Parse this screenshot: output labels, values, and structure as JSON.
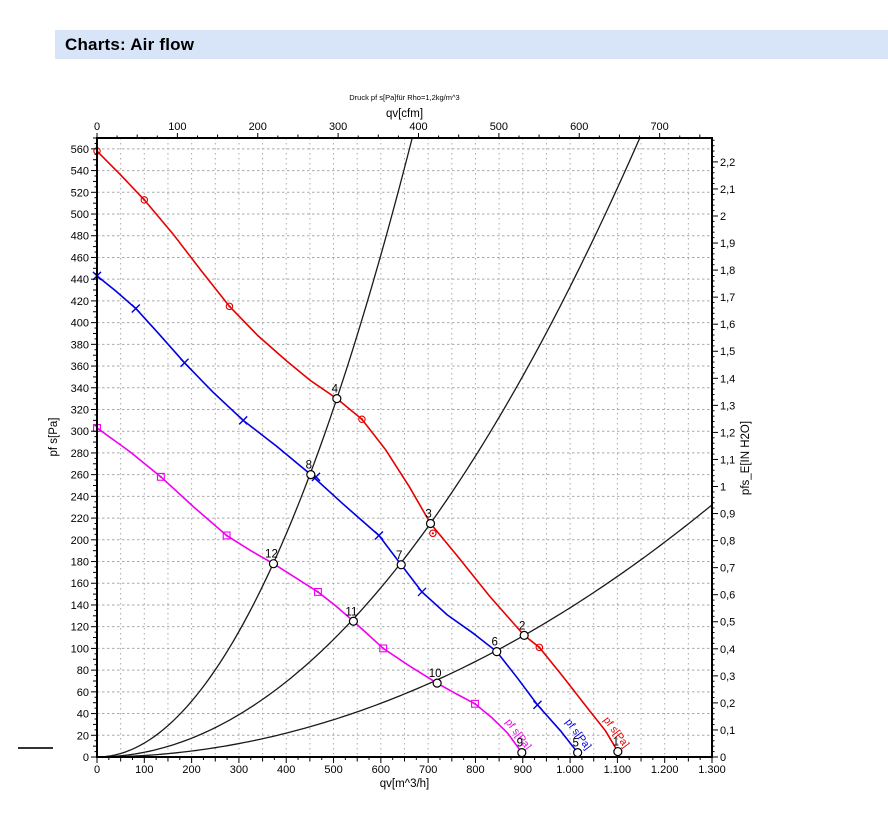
{
  "header": {
    "title": "Charts: Air flow",
    "bg_color": "#d8e4f8"
  },
  "decorations": {
    "dash_color": "#333333"
  },
  "chart_data": {
    "type": "line",
    "title": "Druck pf s[Pa]für Rho=1,2kg/m^3",
    "colors": {
      "grid": "#a9a9a9",
      "axis": "#000000",
      "black_curve": "#1a1a1a",
      "point_fill": "#ffffff"
    },
    "axes": {
      "x_bottom": {
        "label": "qv[m^3/h]",
        "min": 0,
        "max": 1300,
        "minor_step": 25,
        "mid_step": 50,
        "values": [
          0,
          100,
          200,
          300,
          400,
          500,
          600,
          700,
          800,
          900,
          1000,
          1100,
          1200,
          1300
        ],
        "labels": [
          "0",
          "100",
          "200",
          "300",
          "400",
          "500",
          "600",
          "700",
          "800",
          "900",
          "1.000",
          "1.100",
          "1.200",
          "1.300"
        ]
      },
      "x_top": {
        "label": "qv[cfm]",
        "m3h_per_unit": 1.699,
        "minor_step": 25,
        "values": [
          0,
          100,
          200,
          300,
          400,
          500,
          600,
          700
        ],
        "labels": [
          "0",
          "100",
          "200",
          "300",
          "400",
          "500",
          "600",
          "700"
        ]
      },
      "y_left": {
        "label": "pf s[Pa]",
        "min": 0,
        "max": 560,
        "plot_max": 570,
        "minor_step": 5,
        "mid_step": 10,
        "values": [
          0,
          20,
          40,
          60,
          80,
          100,
          120,
          140,
          160,
          180,
          200,
          220,
          240,
          260,
          280,
          300,
          320,
          340,
          360,
          380,
          400,
          420,
          440,
          460,
          480,
          500,
          520,
          540,
          560
        ],
        "labels": [
          "0",
          "20",
          "40",
          "60",
          "80",
          "100",
          "120",
          "140",
          "160",
          "180",
          "200",
          "220",
          "240",
          "260",
          "280",
          "300",
          "320",
          "340",
          "360",
          "380",
          "400",
          "420",
          "440",
          "460",
          "480",
          "500",
          "520",
          "540",
          "560"
        ]
      },
      "y_right": {
        "label": "pfs_E[IN H2O]",
        "pa_per_unit": 249.089,
        "minor_step": 0.02,
        "values": [
          0,
          0.1,
          0.2,
          0.3,
          0.4,
          0.5,
          0.6,
          0.7,
          0.8,
          0.9,
          1,
          1.1,
          1.2,
          1.3,
          1.4,
          1.5,
          1.6,
          1.7,
          1.8,
          1.9,
          2,
          2.1,
          2.2
        ],
        "labels": [
          "0",
          "0,1",
          "0,2",
          "0,3",
          "0,4",
          "0,5",
          "0,6",
          "0,7",
          "0,8",
          "0,9",
          "1",
          "1,1",
          "1,2",
          "1,3",
          "1,4",
          "1,5",
          "1,6",
          "1,7",
          "1,8",
          "1,9",
          "2",
          "2,1",
          "2,2"
        ]
      }
    },
    "series": [
      {
        "id": "fan-curve-high",
        "label": "pf s[Pa]",
        "color": "#e60000",
        "marker": "circle-dot",
        "points": [
          [
            0,
            558
          ],
          [
            50,
            536
          ],
          [
            100,
            513
          ],
          [
            160,
            482
          ],
          [
            220,
            448
          ],
          [
            280,
            415
          ],
          [
            340,
            388
          ],
          [
            400,
            365
          ],
          [
            450,
            347
          ],
          [
            507,
            330
          ],
          [
            560,
            311
          ],
          [
            610,
            283
          ],
          [
            660,
            249
          ],
          [
            705,
            215
          ],
          [
            760,
            186
          ],
          [
            830,
            148
          ],
          [
            903,
            112
          ],
          [
            935,
            101
          ],
          [
            985,
            74
          ],
          [
            1035,
            46
          ],
          [
            1075,
            24
          ],
          [
            1101,
            5
          ]
        ],
        "marker_points": [
          [
            0,
            558
          ],
          [
            100,
            513
          ],
          [
            280,
            415
          ],
          [
            560,
            311
          ],
          [
            710,
            206
          ],
          [
            935,
            101
          ]
        ],
        "label_pos": {
          "x": 603,
          "y": 720,
          "angle": 53
        }
      },
      {
        "id": "fan-curve-mid",
        "label": "pf s[Pa]",
        "color": "#0000e0",
        "marker": "x",
        "points": [
          [
            0,
            443
          ],
          [
            40,
            429
          ],
          [
            82,
            413
          ],
          [
            130,
            390
          ],
          [
            185,
            363
          ],
          [
            245,
            336
          ],
          [
            309,
            310
          ],
          [
            380,
            286
          ],
          [
            452,
            260
          ],
          [
            520,
            233
          ],
          [
            596,
            204
          ],
          [
            643,
            177
          ],
          [
            687,
            152
          ],
          [
            740,
            131
          ],
          [
            795,
            114
          ],
          [
            845,
            97
          ],
          [
            890,
            72
          ],
          [
            931,
            48
          ],
          [
            980,
            24
          ],
          [
            1016,
            4
          ]
        ],
        "marker_points": [
          [
            0,
            443
          ],
          [
            82,
            413
          ],
          [
            185,
            363
          ],
          [
            309,
            310
          ],
          [
            463,
            258
          ],
          [
            596,
            204
          ],
          [
            687,
            152
          ],
          [
            931,
            48
          ]
        ],
        "label_pos": {
          "x": 565,
          "y": 722,
          "angle": 53
        }
      },
      {
        "id": "fan-curve-low",
        "label": "pf s[Pa]",
        "color": "#f000f0",
        "marker": "square-dot",
        "points": [
          [
            0,
            303
          ],
          [
            70,
            281
          ],
          [
            135,
            258
          ],
          [
            205,
            230
          ],
          [
            274,
            204
          ],
          [
            325,
            190
          ],
          [
            373,
            178
          ],
          [
            420,
            165
          ],
          [
            467,
            152
          ],
          [
            505,
            139
          ],
          [
            542,
            125
          ],
          [
            575,
            112
          ],
          [
            605,
            100
          ],
          [
            660,
            84
          ],
          [
            719,
            68
          ],
          [
            760,
            58
          ],
          [
            799,
            49
          ],
          [
            835,
            36
          ],
          [
            868,
            22
          ],
          [
            898,
            4
          ]
        ],
        "marker_points": [
          [
            0,
            303
          ],
          [
            135,
            258
          ],
          [
            274,
            204
          ],
          [
            467,
            152
          ],
          [
            605,
            100
          ],
          [
            799,
            49
          ]
        ],
        "label_pos": {
          "x": 505,
          "y": 722,
          "angle": 53
        }
      }
    ],
    "system_curves": [
      {
        "id": "system-curve-steep",
        "k": 0.001284
      },
      {
        "id": "system-curve-mid",
        "k": 0.000433
      },
      {
        "id": "system-curve-flat",
        "k": 0.0001374
      }
    ],
    "operating_points": [
      {
        "n": "1",
        "x": 1101,
        "y": 5
      },
      {
        "n": "2",
        "x": 903,
        "y": 112
      },
      {
        "n": "3",
        "x": 705,
        "y": 215
      },
      {
        "n": "4",
        "x": 507,
        "y": 330
      },
      {
        "n": "5",
        "x": 1016,
        "y": 4
      },
      {
        "n": "6",
        "x": 845,
        "y": 97
      },
      {
        "n": "7",
        "x": 643,
        "y": 177
      },
      {
        "n": "8",
        "x": 452,
        "y": 260
      },
      {
        "n": "9",
        "x": 898,
        "y": 4
      },
      {
        "n": "10",
        "x": 719,
        "y": 68
      },
      {
        "n": "11",
        "x": 542,
        "y": 125
      },
      {
        "n": "12",
        "x": 373,
        "y": 178
      }
    ]
  }
}
